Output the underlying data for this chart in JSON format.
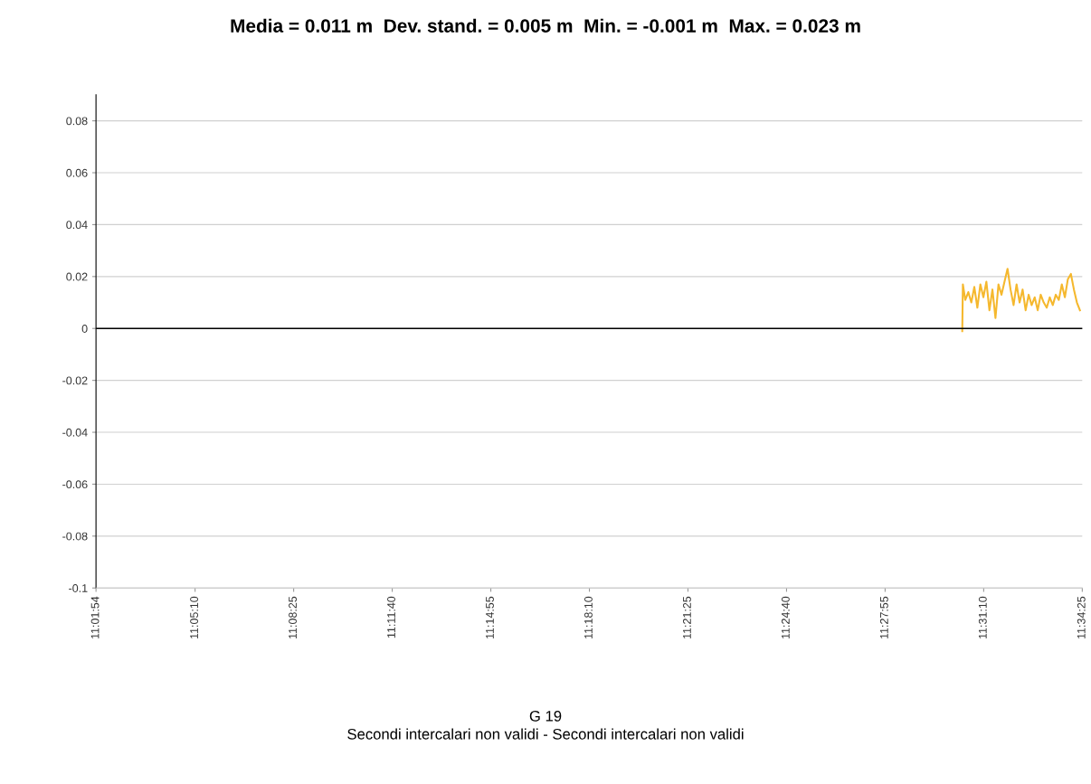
{
  "chart_data": {
    "type": "line",
    "title": "Media = 0.011 m  Dev. stand. = 0.005 m  Min. = -0.001 m  Max. = 0.023 m",
    "annotations": [
      "G 19",
      "Secondi intercalari non validi - Secondi intercalari non validi"
    ],
    "x": [
      11.50767,
      11.508,
      11.50933,
      11.51099,
      11.51264,
      11.5143,
      11.51596,
      11.51762,
      11.51928,
      11.52093,
      11.52259,
      11.52425,
      11.52591,
      11.52757,
      11.52922,
      11.53088,
      11.53254,
      11.5342,
      11.53586,
      11.53751,
      11.53917,
      11.54083,
      11.54249,
      11.54415,
      11.5458,
      11.54746,
      11.54912,
      11.55078,
      11.55244,
      11.55409,
      11.55575,
      11.55741,
      11.55907,
      11.56073,
      11.56238,
      11.56404,
      11.5657,
      11.56736,
      11.56902,
      11.57067,
      11.57233
    ],
    "series": [
      {
        "color": "#f5b82e",
        "values": [
          -0.001,
          0.017,
          0.011,
          0.014,
          0.01,
          0.016,
          0.008,
          0.017,
          0.012,
          0.018,
          0.007,
          0.015,
          0.004,
          0.017,
          0.013,
          0.018,
          0.023,
          0.015,
          0.009,
          0.017,
          0.01,
          0.015,
          0.007,
          0.013,
          0.009,
          0.012,
          0.007,
          0.013,
          0.01,
          0.008,
          0.012,
          0.009,
          0.013,
          0.011,
          0.017,
          0.012,
          0.019,
          0.021,
          0.015,
          0.01,
          0.007
        ]
      }
    ],
    "xlim": [
      11.031667,
      11.573611
    ],
    "xticks": [
      {
        "value": 11.031667,
        "label": "11:01:54"
      },
      {
        "value": 11.086111,
        "label": "11:05:10"
      },
      {
        "value": 11.140278,
        "label": "11:08:25"
      },
      {
        "value": 11.194444,
        "label": "11:11:40"
      },
      {
        "value": 11.248611,
        "label": "11:14:55"
      },
      {
        "value": 11.302778,
        "label": "11:18:10"
      },
      {
        "value": 11.356944,
        "label": "11:21:25"
      },
      {
        "value": 11.411111,
        "label": "11:24:40"
      },
      {
        "value": 11.465278,
        "label": "11:27:55"
      },
      {
        "value": 11.519444,
        "label": "11:31:10"
      },
      {
        "value": 11.573611,
        "label": "11:34:25"
      }
    ],
    "ylim": [
      -0.1,
      0.09
    ],
    "yticks": [
      -0.1,
      -0.08,
      -0.06,
      -0.04,
      -0.02,
      0,
      0.02,
      0.04,
      0.06,
      0.08
    ],
    "ref_lines": [
      {
        "axis": "y",
        "value": 0,
        "color": "#000000"
      }
    ],
    "grid": "y"
  }
}
